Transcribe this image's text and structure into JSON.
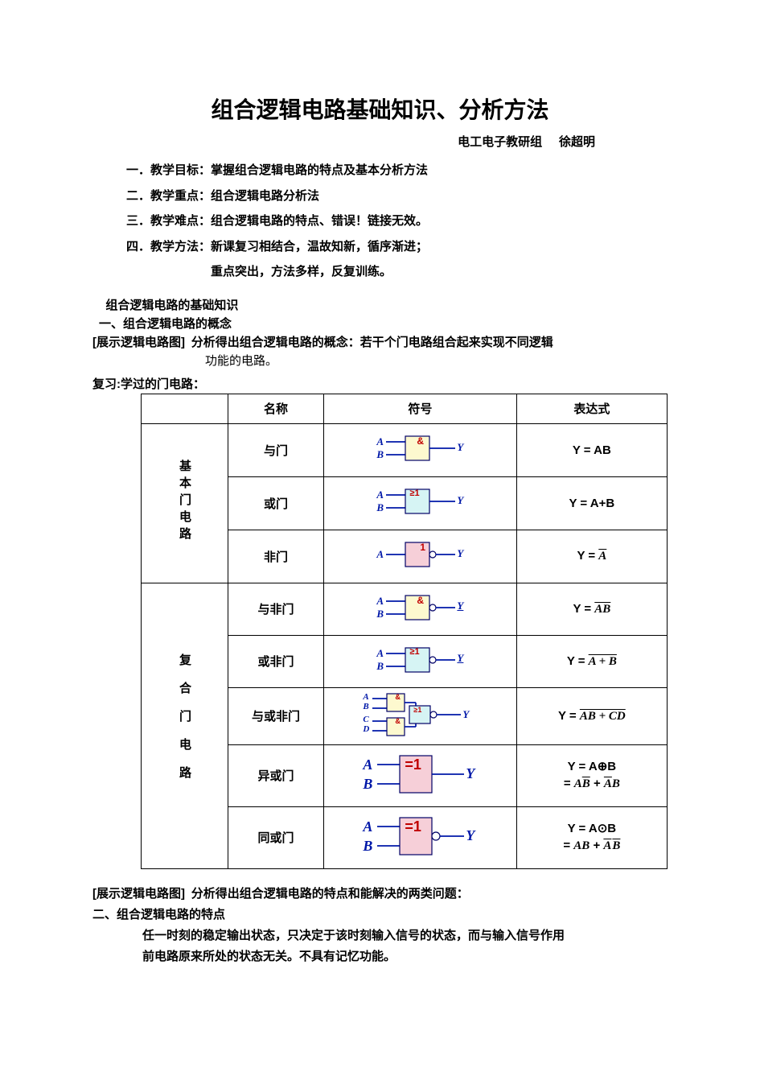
{
  "title": "组合逻辑电路基础知识、分析方法",
  "byline_dept": "电工电子教研组",
  "byline_author": "徐超明",
  "syllabus": {
    "item1": "一．教学目标：掌握组合逻辑电路的特点及基本分析方法",
    "item2": "二．教学重点：组合逻辑电路分析法",
    "item3": "三．教学难点：组合逻辑电路的特点、错误！链接无效。",
    "item4": "四．教学方法：新课复习相结合，温故知新，循序渐进；",
    "item4b": "重点突出，方法多样，反复训练。"
  },
  "section1_heading": "组合逻辑电路的基础知识",
  "section1_sub1": "一、组合逻辑电路的概念",
  "show_prefix": "[展示逻辑电路图]",
  "concept_line_a": "分析得出组合逻辑电路的概念：若干个门电路组合起来实现不同逻辑",
  "concept_line_b": "功能的电路。",
  "review_label": "复习:学过的门电路：",
  "table": {
    "headers": {
      "name": "名称",
      "symbol": "符号",
      "expr": "表达式"
    },
    "cat_basic": "基本门电路",
    "cat_compound": "复合门电路",
    "rows": {
      "and": {
        "name": "与门",
        "op": "&",
        "fill": "#fdf9cf",
        "inputs": [
          "A",
          "B"
        ],
        "out": "Y",
        "expr": "Y = AB"
      },
      "or": {
        "name": "或门",
        "op": "≥1",
        "fill": "#d6f4f4",
        "inputs": [
          "A",
          "B"
        ],
        "out": "Y",
        "expr": "Y = A+B"
      },
      "not": {
        "name": "非门",
        "op": "1",
        "fill": "#f6cfd8",
        "inputs": [
          "A"
        ],
        "out": "Y",
        "expr_html": "Y = <span class=\"ov\">A</span>"
      },
      "nand": {
        "name": "与非门",
        "op": "&",
        "fill": "#fdf9cf",
        "inputs": [
          "A",
          "B"
        ],
        "out": "Y",
        "expr_html": "Y = <span class=\"ov\">AB</span>"
      },
      "nor": {
        "name": "或非门",
        "op": "≥1",
        "fill": "#d6f4f4",
        "inputs": [
          "A",
          "B"
        ],
        "out": "Y",
        "expr_html": "Y = <span class=\"ov it\">A + B</span>"
      },
      "aoi": {
        "name": "与或非门",
        "inputs": [
          "A",
          "B",
          "C",
          "D"
        ],
        "out": "Y",
        "expr_html": "Y = <span class=\"ov it\">AB + CD</span>"
      },
      "xor": {
        "name": "异或门",
        "op": "=1",
        "fill": "#f6cfd8",
        "inputs": [
          "A",
          "B"
        ],
        "out": "Y",
        "expr_line1": "Y = A⊕B",
        "expr_line2_html": "= <span class=\"it\">A</span><span class=\"ov\">B</span> + <span class=\"ov\">A</span><span class=\"it\">B</span>"
      },
      "xnor": {
        "name": "同或门",
        "op": "=1",
        "fill": "#f6cfd8",
        "inputs": [
          "A",
          "B"
        ],
        "out": "Y",
        "expr_line1": "Y = A⊙B",
        "expr_line2_html": "= <span class=\"it\">AB</span> + <span class=\"ov\">A</span><span class=\"ov\" style=\"margin-left:1px\">B</span>"
      }
    }
  },
  "after": {
    "line1_bold": "分析得出组合逻辑电路的特点和能解决的两类问题：",
    "section1_sub2": "二、组合逻辑电路的特点",
    "feat_a": "任一时刻的稳定输出状态，只决定于该时刻输入信号的状态，而与输入信号作用",
    "feat_b": "前电路原来所处的状态无关。不具有记忆功能。"
  },
  "colors": {
    "ink": "#000000",
    "navy": "#0018a8",
    "darknavy": "#000066",
    "red": "#c00000",
    "and_fill": "#fdf9cf",
    "or_fill": "#d6f4f4",
    "not_fill": "#f6cfd8"
  }
}
